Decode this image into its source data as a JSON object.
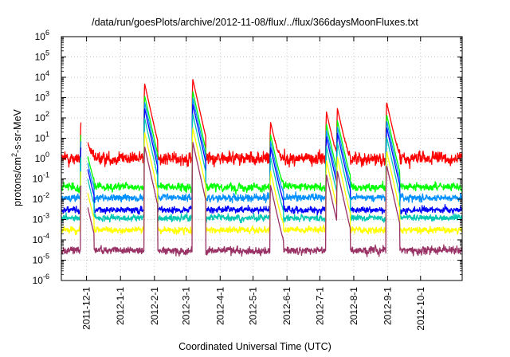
{
  "chart_data": {
    "type": "line",
    "title": "/data/run/goesPlots/archive/2012-11-08/flux/../flux/366daysMoonFluxes.txt",
    "xlabel": "Coordinated Universal Time (UTC)",
    "ylabel_main": "protons/cm",
    "ylabel_sup": "2",
    "ylabel_rest": "-s-sr-MeV",
    "y_scale": "log",
    "ylim": [
      1e-06,
      1000000.0
    ],
    "y_ticks": [
      {
        "base": "10",
        "exp": "-6",
        "value": 1e-06
      },
      {
        "base": "10",
        "exp": "-5",
        "value": 1e-05
      },
      {
        "base": "10",
        "exp": "-4",
        "value": 0.0001
      },
      {
        "base": "10",
        "exp": "-3",
        "value": 0.001
      },
      {
        "base": "10",
        "exp": "-2",
        "value": 0.01
      },
      {
        "base": "10",
        "exp": "-1",
        "value": 0.1
      },
      {
        "base": "10",
        "exp": "0",
        "value": 1
      },
      {
        "base": "10",
        "exp": "1",
        "value": 10
      },
      {
        "base": "10",
        "exp": "2",
        "value": 100
      },
      {
        "base": "10",
        "exp": "3",
        "value": 1000
      },
      {
        "base": "10",
        "exp": "4",
        "value": 10000
      },
      {
        "base": "10",
        "exp": "5",
        "value": 100000
      },
      {
        "base": "10",
        "exp": "6",
        "value": 1000000
      }
    ],
    "xlim": [
      "2011-11-08",
      "2012-11-08"
    ],
    "x_ticks": [
      {
        "label": "2011-12-1",
        "date": "2011-12-01"
      },
      {
        "label": "2012-1-1",
        "date": "2012-01-01"
      },
      {
        "label": "2012-2-1",
        "date": "2012-02-01"
      },
      {
        "label": "2012-3-1",
        "date": "2012-03-01"
      },
      {
        "label": "2012-4-1",
        "date": "2012-04-01"
      },
      {
        "label": "2012-5-1",
        "date": "2012-05-01"
      },
      {
        "label": "2012-6-1",
        "date": "2012-06-01"
      },
      {
        "label": "2012-7-1",
        "date": "2012-07-01"
      },
      {
        "label": "2012-8-1",
        "date": "2012-08-01"
      },
      {
        "label": "2012-9-1",
        "date": "2012-09-01"
      },
      {
        "label": "2012-10-1",
        "date": "2012-10-01"
      }
    ],
    "grid": true,
    "legend": "none",
    "data_gap": [
      "2011-11-26",
      "2011-12-02"
    ],
    "events": [
      {
        "date": "2011-11-26",
        "peak": 150
      },
      {
        "date": "2012-01-23",
        "peak": 5000
      },
      {
        "date": "2012-03-07",
        "peak": 8000
      },
      {
        "date": "2012-05-17",
        "peak": 60
      },
      {
        "date": "2012-07-07",
        "peak": 200
      },
      {
        "date": "2012-07-17",
        "peak": 300
      },
      {
        "date": "2012-08-31",
        "peak": 600
      }
    ],
    "series": [
      {
        "color": "#ff0000",
        "baseline": 1.0,
        "noise_decades": 0.9,
        "event_scale": 1.0
      },
      {
        "color": "#00ff00",
        "baseline": 0.04,
        "noise_decades": 0.55,
        "event_scale": 0.25
      },
      {
        "color": "#0090ff",
        "baseline": 0.012,
        "noise_decades": 0.5,
        "event_scale": 0.12
      },
      {
        "color": "#0000ff",
        "baseline": 0.003,
        "noise_decades": 0.45,
        "event_scale": 0.06
      },
      {
        "color": "#00c8b4",
        "baseline": 0.0012,
        "noise_decades": 0.45,
        "event_scale": 0.02
      },
      {
        "color": "#ffff00",
        "baseline": 0.0003,
        "noise_decades": 0.45,
        "event_scale": 0.004
      },
      {
        "color": "#993366",
        "baseline": 3e-05,
        "noise_decades": 0.55,
        "event_scale": 0.0008
      }
    ]
  }
}
